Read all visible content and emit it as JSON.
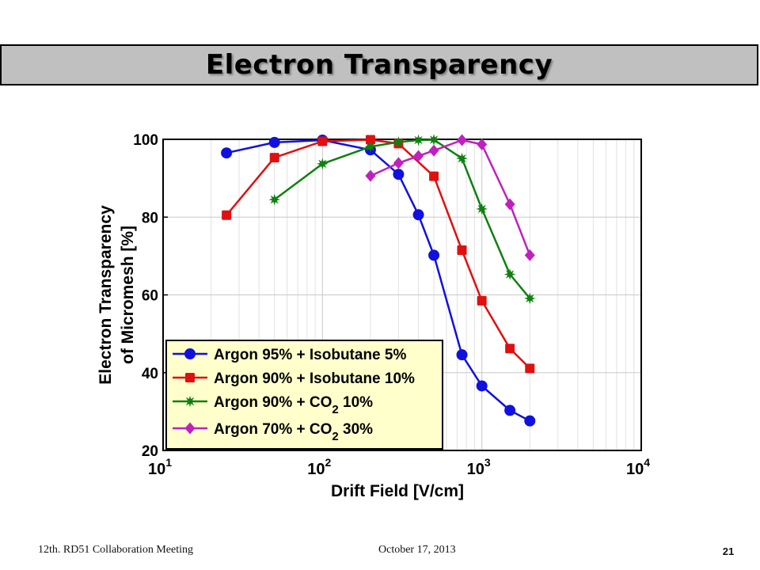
{
  "slide": {
    "title": "Electron Transparency",
    "footer_left": "12th. RD51 Collaboration Meeting",
    "footer_center": "October 17, 2013",
    "page_number": "21"
  },
  "chart_data": {
    "type": "line",
    "x_scale": "log",
    "xlabel": "Drift Field [V/cm]",
    "ylabel_lines": [
      "Electron Transparency",
      "of Micromesh [%]"
    ],
    "xlim": [
      10,
      10000
    ],
    "ylim": [
      20,
      100
    ],
    "x_ticks": [
      {
        "value": 10,
        "base": "10",
        "exp": "1"
      },
      {
        "value": 100,
        "base": "10",
        "exp": "2"
      },
      {
        "value": 1000,
        "base": "10",
        "exp": "3"
      },
      {
        "value": 10000,
        "base": "10",
        "exp": "4"
      }
    ],
    "y_ticks": [
      20,
      40,
      60,
      80,
      100
    ],
    "grid": true,
    "legend_position": "lower-left",
    "series": [
      {
        "name_parts": [
          "Argon 95% + Isobutane 5%"
        ],
        "color": "#1010e0",
        "marker": "circle",
        "x": [
          25,
          50,
          100,
          200,
          300,
          400,
          500,
          750,
          1000,
          1500,
          2000
        ],
        "y": [
          96.5,
          99.2,
          99.8,
          97.3,
          91,
          80.6,
          70.2,
          44.6,
          36.6,
          30.3,
          27.6
        ]
      },
      {
        "name_parts": [
          "Argon 90% + Isobutane 10%"
        ],
        "color": "#e01010",
        "marker": "square",
        "x": [
          25,
          50,
          100,
          200,
          300,
          500,
          750,
          1000,
          1500,
          2000
        ],
        "y": [
          80.5,
          95.3,
          99.5,
          99.9,
          98.9,
          90.5,
          71.5,
          58.5,
          46.2,
          41.1
        ]
      },
      {
        "name_parts": [
          "Argon 90% + CO",
          "2",
          " 10%"
        ],
        "color": "#108010",
        "marker": "star",
        "x": [
          50,
          100,
          200,
          300,
          400,
          500,
          750,
          1000,
          1500,
          2000
        ],
        "y": [
          84.5,
          93.7,
          98.1,
          99.3,
          99.8,
          99.9,
          95.1,
          82.1,
          65.3,
          59.1
        ]
      },
      {
        "name_parts": [
          "Argon 70% + CO",
          "2",
          " 30%"
        ],
        "color": "#c020c0",
        "marker": "diamond",
        "x": [
          200,
          300,
          400,
          500,
          750,
          1000,
          1500,
          2000
        ],
        "y": [
          90.6,
          93.9,
          95.7,
          97.1,
          99.8,
          98.7,
          83.3,
          70.2
        ]
      }
    ]
  }
}
